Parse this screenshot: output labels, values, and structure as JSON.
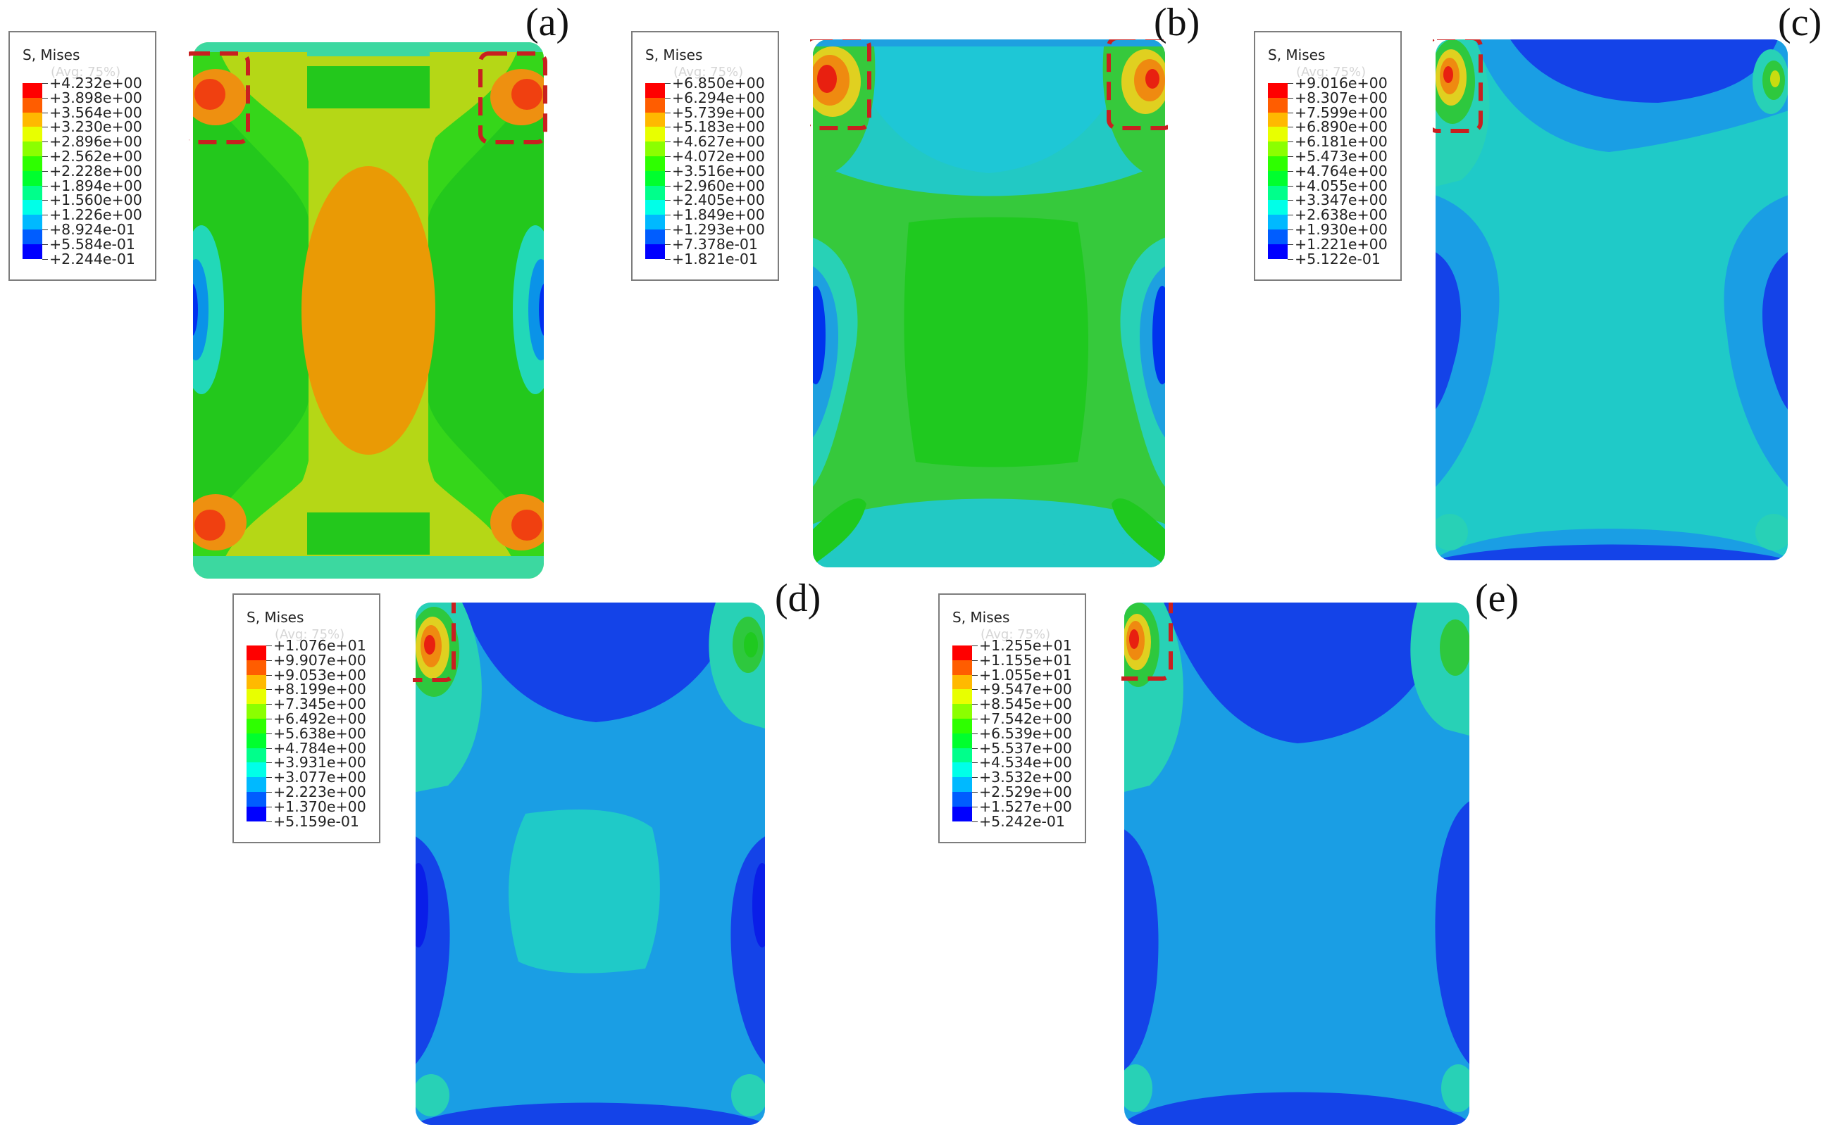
{
  "figure": {
    "legend_colors": [
      "#0000ff",
      "#005dff",
      "#00b9ff",
      "#00ffe8",
      "#00ff8b",
      "#00ff2e",
      "#2eff00",
      "#8bff00",
      "#e8ff00",
      "#ffb900",
      "#ff5d00",
      "#ff0000"
    ],
    "panels": [
      {
        "label": "(a)",
        "legend_title": "S, Mises",
        "legend_subtitle": "(Avg: 75%)",
        "legend_values": [
          "+4.232e+00",
          "+3.898e+00",
          "+3.564e+00",
          "+3.230e+00",
          "+2.896e+00",
          "+2.562e+00",
          "+2.228e+00",
          "+1.894e+00",
          "+1.560e+00",
          "+1.226e+00",
          "+8.924e-01",
          "+5.584e-01",
          "+2.244e-01"
        ]
      },
      {
        "label": "(b)",
        "legend_title": "S, Mises",
        "legend_subtitle": "(Avg: 75%)",
        "legend_values": [
          "+6.850e+00",
          "+6.294e+00",
          "+5.739e+00",
          "+5.183e+00",
          "+4.627e+00",
          "+4.072e+00",
          "+3.516e+00",
          "+2.960e+00",
          "+2.405e+00",
          "+1.849e+00",
          "+1.293e+00",
          "+7.378e-01",
          "+1.821e-01"
        ]
      },
      {
        "label": "(c)",
        "legend_title": "S, Mises",
        "legend_subtitle": "(Avg: 75%)",
        "legend_values": [
          "+9.016e+00",
          "+8.307e+00",
          "+7.599e+00",
          "+6.890e+00",
          "+6.181e+00",
          "+5.473e+00",
          "+4.764e+00",
          "+4.055e+00",
          "+3.347e+00",
          "+2.638e+00",
          "+1.930e+00",
          "+1.221e+00",
          "+5.122e-01"
        ]
      },
      {
        "label": "(d)",
        "legend_title": "S, Mises",
        "legend_subtitle": "(Avg: 75%)",
        "legend_values": [
          "+1.076e+01",
          "+9.907e+00",
          "+9.053e+00",
          "+8.199e+00",
          "+7.345e+00",
          "+6.492e+00",
          "+5.638e+00",
          "+4.784e+00",
          "+3.931e+00",
          "+3.077e+00",
          "+2.223e+00",
          "+1.370e+00",
          "+5.159e-01"
        ]
      },
      {
        "label": "(e)",
        "legend_title": "S, Mises",
        "legend_subtitle": "(Avg: 75%)",
        "legend_values": [
          "+1.255e+01",
          "+1.155e+01",
          "+1.055e+01",
          "+9.547e+00",
          "+8.545e+00",
          "+7.542e+00",
          "+6.539e+00",
          "+5.537e+00",
          "+4.534e+00",
          "+3.532e+00",
          "+2.529e+00",
          "+1.527e+00",
          "+5.242e-01"
        ]
      }
    ]
  }
}
